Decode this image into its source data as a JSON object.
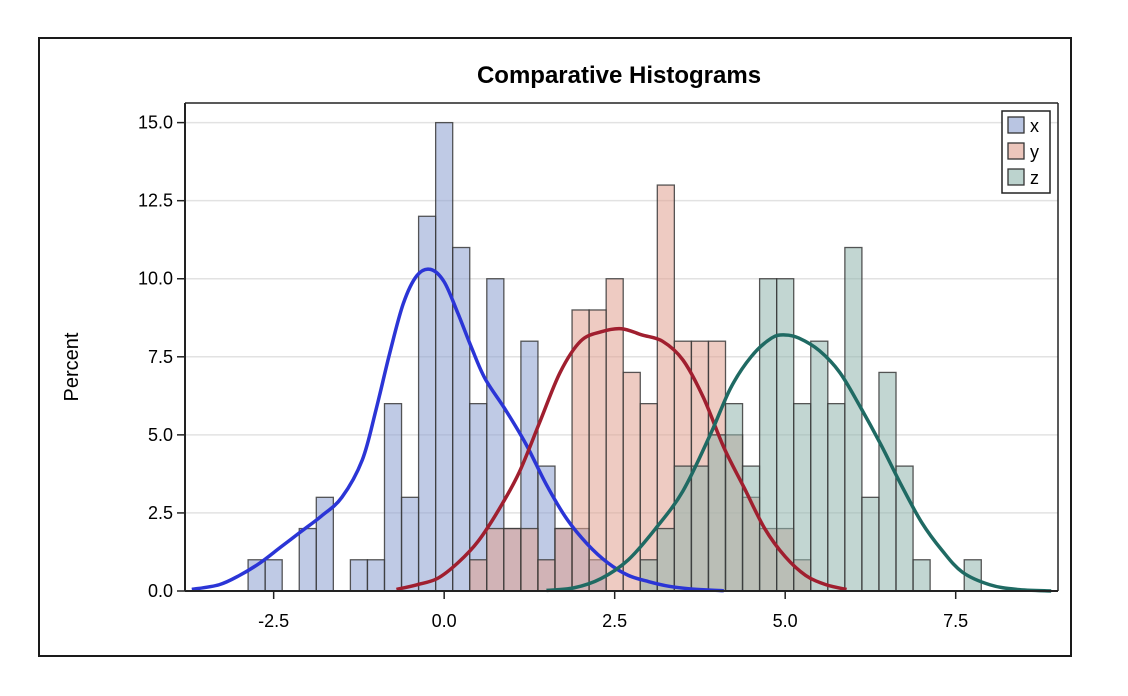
{
  "chart_data": {
    "type": "bar",
    "title": "Comparative Histograms",
    "xlabel": "",
    "ylabel": "Percent",
    "xlim": [
      -3.8,
      9.0
    ],
    "ylim": [
      0,
      15.5
    ],
    "x_ticks": [
      -2.5,
      0.0,
      2.5,
      5.0,
      7.5
    ],
    "x_tick_labels": [
      "-2.5",
      "0.0",
      "2.5",
      "5.0",
      "7.5"
    ],
    "y_ticks": [
      0,
      2.5,
      5.0,
      7.5,
      10.0,
      12.5,
      15.0
    ],
    "y_tick_labels": [
      "0.0",
      "2.5",
      "5.0",
      "7.5",
      "10.0",
      "12.5",
      "15.0"
    ],
    "grid": "horizontal",
    "legend_position": "top-right",
    "bin_width": 0.25,
    "series": [
      {
        "name": "x",
        "color": "#8b9fcf",
        "curve_color": "#2b35d6",
        "bin_starts": [
          -2.875,
          -2.625,
          -2.375,
          -2.125,
          -1.875,
          -1.625,
          -1.375,
          -1.125,
          -0.875,
          -0.625,
          -0.375,
          -0.125,
          0.125,
          0.375,
          0.625,
          0.875,
          1.125,
          1.375,
          1.625,
          1.875,
          2.125
        ],
        "values": [
          1,
          1,
          0,
          2,
          3,
          0,
          1,
          1,
          6,
          3,
          12,
          15,
          11,
          6,
          10,
          2,
          8,
          4,
          2,
          2,
          1
        ],
        "density_x": [
          -3.7,
          -3.3,
          -3.0,
          -2.7,
          -2.4,
          -2.1,
          -1.8,
          -1.5,
          -1.2,
          -1.0,
          -0.8,
          -0.6,
          -0.4,
          -0.2,
          0.0,
          0.2,
          0.4,
          0.6,
          0.9,
          1.2,
          1.5,
          1.8,
          2.1,
          2.4,
          2.7,
          3.0,
          3.3,
          3.6,
          3.9,
          4.1
        ],
        "density_y": [
          0.05,
          0.2,
          0.5,
          0.9,
          1.4,
          1.9,
          2.4,
          3.0,
          4.2,
          5.8,
          7.6,
          9.2,
          10.1,
          10.3,
          9.9,
          8.9,
          7.8,
          6.8,
          5.8,
          4.7,
          3.4,
          2.3,
          1.5,
          0.9,
          0.5,
          0.3,
          0.15,
          0.07,
          0.03,
          0.01
        ]
      },
      {
        "name": "y",
        "color": "#e0a090",
        "curve_color": "#a01f2f",
        "bin_starts": [
          0.375,
          0.625,
          0.875,
          1.125,
          1.375,
          1.625,
          1.875,
          2.125,
          2.375,
          2.625,
          2.875,
          3.125,
          3.375,
          3.625,
          3.875,
          4.125,
          4.375,
          4.625,
          4.875,
          5.125
        ],
        "values": [
          1,
          2,
          2,
          2,
          1,
          2,
          9,
          9,
          10,
          7,
          6,
          13,
          8,
          8,
          8,
          5,
          3,
          2,
          2,
          1
        ],
        "density_x": [
          -0.7,
          -0.4,
          -0.1,
          0.2,
          0.5,
          0.8,
          1.1,
          1.4,
          1.7,
          2.0,
          2.3,
          2.6,
          2.9,
          3.2,
          3.5,
          3.8,
          4.1,
          4.4,
          4.7,
          5.0,
          5.3,
          5.6,
          5.9
        ],
        "density_y": [
          0.05,
          0.2,
          0.4,
          0.9,
          1.6,
          2.6,
          3.8,
          5.4,
          7.0,
          8.0,
          8.3,
          8.4,
          8.2,
          8.0,
          7.4,
          6.2,
          4.6,
          3.3,
          2.0,
          1.1,
          0.5,
          0.2,
          0.05
        ]
      },
      {
        "name": "z",
        "color": "#8fb5ad",
        "curve_color": "#1f6a63",
        "bin_starts": [
          2.875,
          3.125,
          3.375,
          3.625,
          3.875,
          4.125,
          4.375,
          4.625,
          4.875,
          5.125,
          5.375,
          5.625,
          5.875,
          6.125,
          6.375,
          6.625,
          6.875,
          7.125,
          7.375,
          7.625
        ],
        "values": [
          1,
          2,
          4,
          4,
          5,
          6,
          4,
          10,
          10,
          6,
          8,
          6,
          11,
          3,
          7,
          4,
          1,
          0,
          0,
          1
        ],
        "density_x": [
          1.5,
          1.9,
          2.3,
          2.7,
          3.1,
          3.5,
          3.9,
          4.2,
          4.5,
          4.8,
          5.0,
          5.2,
          5.5,
          5.8,
          6.1,
          6.4,
          6.7,
          7.0,
          7.3,
          7.6,
          8.0,
          8.4,
          8.9
        ],
        "density_y": [
          0.02,
          0.1,
          0.4,
          1.0,
          2.0,
          3.2,
          5.0,
          6.5,
          7.5,
          8.1,
          8.2,
          8.1,
          7.7,
          7.0,
          5.9,
          4.7,
          3.4,
          2.2,
          1.3,
          0.6,
          0.2,
          0.05,
          0.0
        ]
      }
    ]
  }
}
